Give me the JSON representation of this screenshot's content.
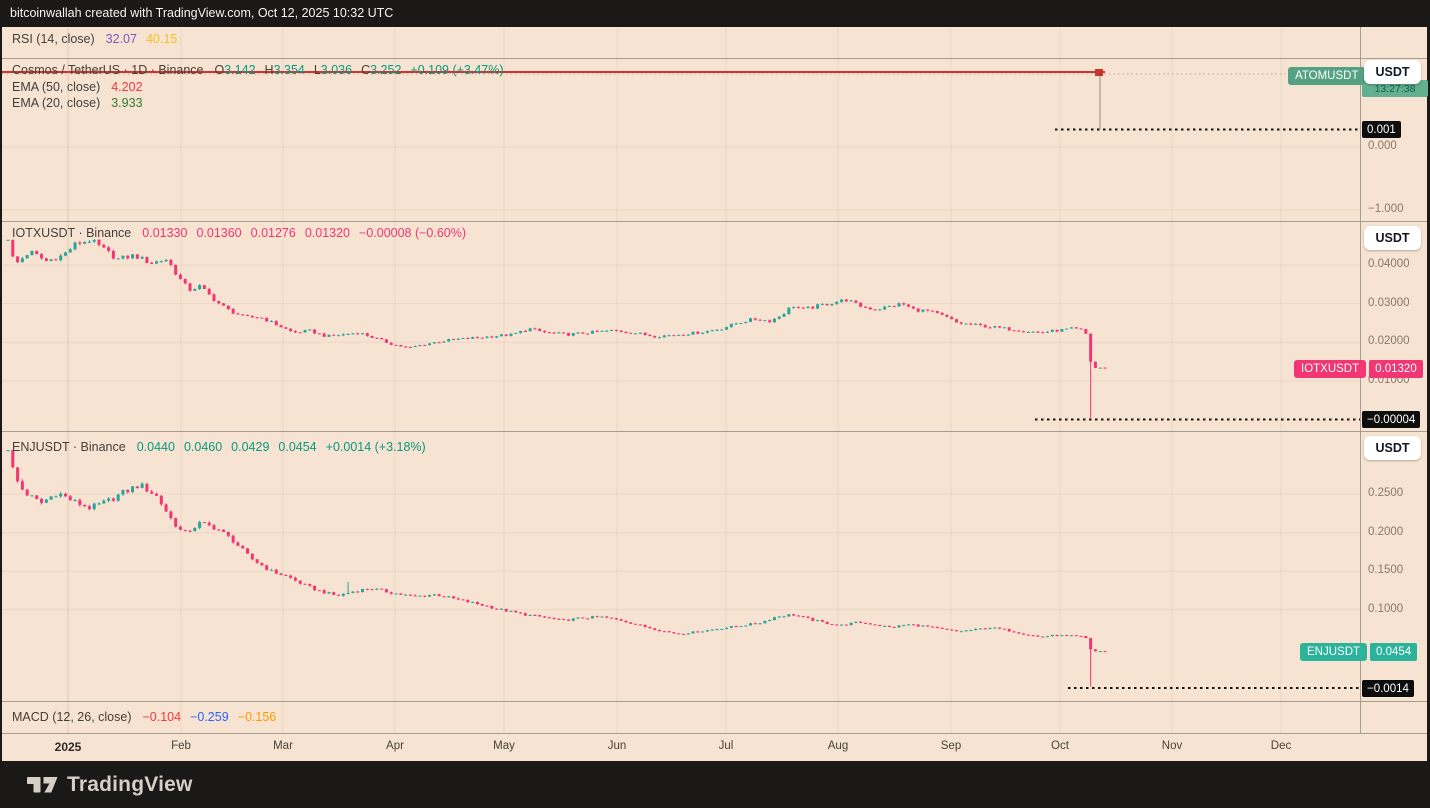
{
  "topbar": {
    "attribution": "bitcoinwallah created with TradingView.com, Oct 12, 2025 10:32 UTC"
  },
  "footer": {
    "brand": "TradingView"
  },
  "colors": {
    "background": "#f7e3d1",
    "frame": "#1b1917",
    "up": "#26a69a",
    "down": "#f23674",
    "ema50": "#f23645",
    "ema20": "#2e7d32",
    "rsi": "#7e57c2",
    "rsi_ma": "#f3c124",
    "macd": "#f23645",
    "macd_signal": "#2962ff",
    "macd_hist": "#ff9800",
    "atom_badge": "#55a183",
    "iotx_badge": "#f23674",
    "enj_badge": "#2cb39b",
    "cosmos_values": "#089981",
    "iotx_values": "#f23674",
    "enj_values": "#089981"
  },
  "panes": {
    "rsi": {
      "label": "RSI (14, close)",
      "values": [
        {
          "text": "32.07",
          "color": "#7e57c2"
        },
        {
          "text": "40.15",
          "color": "#f3c124"
        }
      ]
    },
    "atom": {
      "title": "Cosmos / TetherUS · 1D · Binance",
      "ohlc_parts": [
        {
          "k": "O",
          "v": "3.142"
        },
        {
          "k": "H",
          "v": "3.354"
        },
        {
          "k": "L",
          "v": "3.036"
        },
        {
          "k": "C",
          "v": "3.252"
        },
        {
          "k": "",
          "v": "+0.109 (+3.47%)"
        }
      ],
      "ema50_label": "EMA (50, close)",
      "ema50_value": "4.202",
      "ema20_label": "EMA (20, close)",
      "ema20_value": "3.933",
      "badge": "ATOMUSDT",
      "currency_button": "USDT",
      "countdown": "13:27:38",
      "marker_label": "0.001",
      "scale_ticks": [
        {
          "label": "0.000"
        },
        {
          "label": "−1.000"
        }
      ]
    },
    "iotx": {
      "title": "IOTXUSDT · Binance",
      "values": [
        "0.01330",
        "0.01360",
        "0.01276",
        "0.01320",
        "−0.00008 (−0.60%)"
      ],
      "badge": "IOTXUSDT",
      "currency_button": "USDT",
      "last_price_label": "0.01320",
      "low_marker_label": "−0.00004"
    },
    "enj": {
      "title": "ENJUSDT · Binance",
      "values": [
        "0.0440",
        "0.0460",
        "0.0429",
        "0.0454",
        "+0.0014 (+3.18%)"
      ],
      "badge": "ENJUSDT",
      "currency_button": "USDT",
      "last_price_label": "0.0454",
      "low_marker_label": "−0.0014"
    },
    "macd": {
      "label": "MACD (12, 26, close)",
      "values": [
        {
          "text": "−0.104",
          "color": "#f23645"
        },
        {
          "text": "−0.259",
          "color": "#2962ff"
        },
        {
          "text": "−0.156",
          "color": "#ff9800"
        }
      ]
    }
  },
  "time_axis": {
    "labels": [
      "2025",
      "Feb",
      "Mar",
      "Apr",
      "May",
      "Jun",
      "Jul",
      "Aug",
      "Sep",
      "Oct",
      "Nov",
      "Dec"
    ]
  },
  "chart_data": [
    {
      "type": "line",
      "symbol": "ATOMUSDT",
      "title": "Cosmos / TetherUS",
      "interval": "1D",
      "exchange": "Binance",
      "ohlc": {
        "open": 3.142,
        "high": 3.354,
        "low": 3.036,
        "close": 3.252,
        "change": "+0.109 (+3.47%)"
      },
      "indicators": [
        {
          "name": "RSI (14, close)",
          "values": [
            32.07,
            40.15
          ]
        },
        {
          "name": "EMA (50, close)",
          "value": 4.202
        },
        {
          "name": "EMA (20, close)",
          "value": 3.933
        },
        {
          "name": "MACD (12, 26, close)",
          "values": [
            -0.104,
            -0.259,
            -0.156
          ]
        }
      ],
      "y_axis": {
        "visible_tick_labels": [
          "0.000",
          "−1.000"
        ],
        "marker_label": "0.001",
        "countdown": "13:27:38"
      },
      "note": "price series compressed at top of pane with flash-crash drop near Oct 10"
    },
    {
      "type": "candlestick",
      "symbol": "IOTXUSDT",
      "exchange": "Binance",
      "interval": "1D",
      "x_range": [
        "Dec 2024",
        "Oct 12 2025"
      ],
      "y_axis": {
        "ticks": [
          0.04,
          0.03,
          0.02,
          0.01
        ],
        "tick_labels": [
          "0.04000",
          "0.03000",
          "0.02000",
          "0.01000"
        ],
        "last_price": 0.0132,
        "low_marker": -4e-05
      },
      "candles": 230,
      "keyframes": [
        [
          0,
          0.047
        ],
        [
          0.006,
          0.04
        ],
        [
          0.02,
          0.0435
        ],
        [
          0.035,
          0.041
        ],
        [
          0.05,
          0.0425
        ],
        [
          0.062,
          0.0455
        ],
        [
          0.075,
          0.0465
        ],
        [
          0.09,
          0.0435
        ],
        [
          0.1,
          0.0415
        ],
        [
          0.115,
          0.0425
        ],
        [
          0.13,
          0.0405
        ],
        [
          0.145,
          0.0415
        ],
        [
          0.155,
          0.037
        ],
        [
          0.165,
          0.0335
        ],
        [
          0.175,
          0.0345
        ],
        [
          0.19,
          0.0305
        ],
        [
          0.2,
          0.0285
        ],
        [
          0.215,
          0.0265
        ],
        [
          0.23,
          0.0265
        ],
        [
          0.245,
          0.0245
        ],
        [
          0.26,
          0.0225
        ],
        [
          0.275,
          0.023
        ],
        [
          0.29,
          0.0215
        ],
        [
          0.305,
          0.022
        ],
        [
          0.32,
          0.0225
        ],
        [
          0.335,
          0.021
        ],
        [
          0.35,
          0.0195
        ],
        [
          0.365,
          0.0185
        ],
        [
          0.38,
          0.0195
        ],
        [
          0.4,
          0.0205
        ],
        [
          0.42,
          0.021
        ],
        [
          0.44,
          0.0215
        ],
        [
          0.46,
          0.022
        ],
        [
          0.475,
          0.0235
        ],
        [
          0.49,
          0.0225
        ],
        [
          0.51,
          0.022
        ],
        [
          0.53,
          0.0225
        ],
        [
          0.55,
          0.023
        ],
        [
          0.57,
          0.0225
        ],
        [
          0.59,
          0.0215
        ],
        [
          0.61,
          0.022
        ],
        [
          0.63,
          0.0225
        ],
        [
          0.65,
          0.0235
        ],
        [
          0.665,
          0.025
        ],
        [
          0.68,
          0.026
        ],
        [
          0.695,
          0.0255
        ],
        [
          0.705,
          0.027
        ],
        [
          0.715,
          0.0295
        ],
        [
          0.725,
          0.0285
        ],
        [
          0.74,
          0.0295
        ],
        [
          0.755,
          0.0305
        ],
        [
          0.765,
          0.031
        ],
        [
          0.775,
          0.0295
        ],
        [
          0.79,
          0.0285
        ],
        [
          0.8,
          0.029
        ],
        [
          0.815,
          0.03
        ],
        [
          0.825,
          0.0285
        ],
        [
          0.84,
          0.028
        ],
        [
          0.855,
          0.0265
        ],
        [
          0.865,
          0.025
        ],
        [
          0.88,
          0.0245
        ],
        [
          0.895,
          0.024
        ],
        [
          0.91,
          0.0235
        ],
        [
          0.925,
          0.023
        ],
        [
          0.94,
          0.0225
        ],
        [
          0.955,
          0.023
        ],
        [
          0.97,
          0.0235
        ],
        [
          0.982,
          0.023
        ],
        [
          0.988,
          0.0132
        ],
        [
          0.994,
          0.0135
        ],
        [
          1,
          0.0132
        ]
      ],
      "wick_events": [
        {
          "t": 0.988,
          "low": 0.0004
        }
      ]
    },
    {
      "type": "candlestick",
      "symbol": "ENJUSDT",
      "exchange": "Binance",
      "interval": "1D",
      "x_range": [
        "Dec 2024",
        "Oct 12 2025"
      ],
      "y_axis": {
        "ticks": [
          0.25,
          0.2,
          0.15,
          0.1
        ],
        "tick_labels": [
          "0.2500",
          "0.2000",
          "0.1500",
          "0.1000"
        ],
        "last_price": 0.0454,
        "low_marker": -0.0014
      },
      "candles": 230,
      "keyframes": [
        [
          0,
          0.31
        ],
        [
          0.006,
          0.272
        ],
        [
          0.015,
          0.252
        ],
        [
          0.03,
          0.238
        ],
        [
          0.045,
          0.252
        ],
        [
          0.06,
          0.24
        ],
        [
          0.075,
          0.232
        ],
        [
          0.09,
          0.24
        ],
        [
          0.105,
          0.252
        ],
        [
          0.12,
          0.262
        ],
        [
          0.135,
          0.248
        ],
        [
          0.15,
          0.215
        ],
        [
          0.16,
          0.198
        ],
        [
          0.175,
          0.212
        ],
        [
          0.19,
          0.206
        ],
        [
          0.205,
          0.19
        ],
        [
          0.22,
          0.168
        ],
        [
          0.24,
          0.15
        ],
        [
          0.255,
          0.143
        ],
        [
          0.27,
          0.132
        ],
        [
          0.285,
          0.124
        ],
        [
          0.3,
          0.118
        ],
        [
          0.315,
          0.124
        ],
        [
          0.33,
          0.128
        ],
        [
          0.35,
          0.122
        ],
        [
          0.37,
          0.117
        ],
        [
          0.39,
          0.12
        ],
        [
          0.41,
          0.113
        ],
        [
          0.43,
          0.107
        ],
        [
          0.45,
          0.1
        ],
        [
          0.47,
          0.094
        ],
        [
          0.49,
          0.09
        ],
        [
          0.505,
          0.086
        ],
        [
          0.52,
          0.089
        ],
        [
          0.54,
          0.091
        ],
        [
          0.56,
          0.086
        ],
        [
          0.578,
          0.079
        ],
        [
          0.595,
          0.073
        ],
        [
          0.61,
          0.069
        ],
        [
          0.625,
          0.071
        ],
        [
          0.645,
          0.075
        ],
        [
          0.665,
          0.079
        ],
        [
          0.685,
          0.083
        ],
        [
          0.7,
          0.091
        ],
        [
          0.715,
          0.094
        ],
        [
          0.73,
          0.088
        ],
        [
          0.745,
          0.083
        ],
        [
          0.76,
          0.08
        ],
        [
          0.775,
          0.084
        ],
        [
          0.79,
          0.081
        ],
        [
          0.805,
          0.077
        ],
        [
          0.82,
          0.081
        ],
        [
          0.835,
          0.079
        ],
        [
          0.85,
          0.075
        ],
        [
          0.865,
          0.072
        ],
        [
          0.88,
          0.074
        ],
        [
          0.895,
          0.077
        ],
        [
          0.91,
          0.074
        ],
        [
          0.925,
          0.069
        ],
        [
          0.94,
          0.065
        ],
        [
          0.955,
          0.067
        ],
        [
          0.97,
          0.066
        ],
        [
          0.982,
          0.065
        ],
        [
          0.988,
          0.0454
        ],
        [
          0.994,
          0.047
        ],
        [
          1,
          0.0454
        ]
      ],
      "wick_events": [
        {
          "t": 0.31,
          "high": 0.136
        },
        {
          "t": 0.988,
          "low": 0.0008
        }
      ]
    }
  ]
}
